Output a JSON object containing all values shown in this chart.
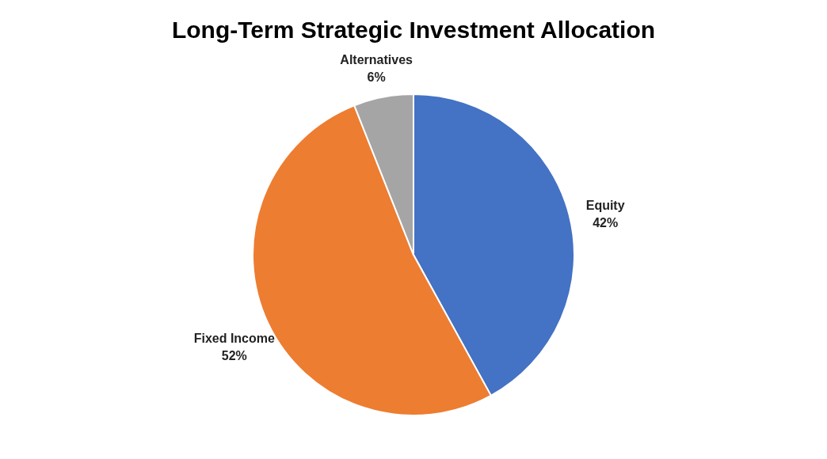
{
  "chart_data": {
    "type": "pie",
    "title": "Long-Term Strategic Investment Allocation",
    "categories": [
      "Equity",
      "Fixed Income",
      "Alternatives"
    ],
    "values": [
      42,
      52,
      6
    ],
    "colors": [
      "#4472c4",
      "#ed7d31",
      "#a5a5a5"
    ],
    "value_labels": [
      "42%",
      "52%",
      "6%"
    ],
    "legend": false
  }
}
